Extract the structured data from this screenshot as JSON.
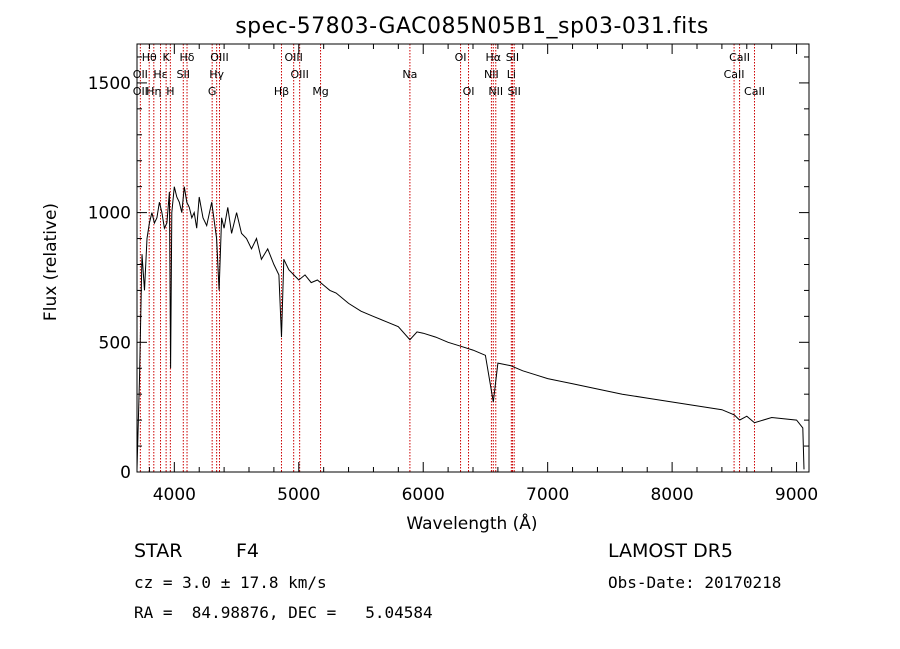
{
  "chart_data": {
    "type": "line",
    "title": "spec-57803-GAC085N05B1_sp03-031.fits",
    "xlabel": "Wavelength (Å)",
    "ylabel": "Flux (relative)",
    "xlim": [
      3700,
      9100
    ],
    "ylim": [
      0,
      1650
    ],
    "x_ticks": [
      4000,
      5000,
      6000,
      7000,
      8000,
      9000
    ],
    "y_ticks": [
      0,
      500,
      1000,
      1500
    ],
    "x_tick_labels": [
      "4000",
      "5000",
      "6000",
      "7000",
      "8000",
      "9000"
    ],
    "y_tick_labels": [
      "0",
      "500",
      "1000",
      "1500"
    ],
    "series": [
      {
        "x": [
          3700,
          3720,
          3740,
          3760,
          3780,
          3800,
          3820,
          3840,
          3860,
          3880,
          3900,
          3920,
          3940,
          3960,
          3970,
          3980,
          4000,
          4020,
          4040,
          4060,
          4080,
          4100,
          4120,
          4140,
          4160,
          4180,
          4200,
          4230,
          4260,
          4300,
          4340,
          4360,
          4380,
          4400,
          4430,
          4460,
          4500,
          4540,
          4580,
          4620,
          4660,
          4700,
          4750,
          4800,
          4840,
          4861,
          4880,
          4920,
          4960,
          5000,
          5050,
          5100,
          5150,
          5200,
          5250,
          5300,
          5400,
          5500,
          5600,
          5700,
          5800,
          5893,
          5950,
          6000,
          6100,
          6200,
          6300,
          6400,
          6500,
          6563,
          6600,
          6700,
          6800,
          6900,
          7000,
          7200,
          7400,
          7600,
          7800,
          8000,
          8200,
          8400,
          8500,
          8542,
          8600,
          8662,
          8800,
          9000,
          9050,
          9060
        ],
        "y": [
          10,
          360,
          840,
          700,
          900,
          960,
          1000,
          960,
          980,
          1040,
          1000,
          940,
          960,
          1080,
          400,
          1000,
          1100,
          1060,
          1040,
          1000,
          1100,
          1040,
          1020,
          980,
          1000,
          940,
          1060,
          980,
          950,
          1040,
          900,
          700,
          980,
          940,
          1020,
          920,
          1000,
          920,
          900,
          860,
          900,
          820,
          860,
          800,
          760,
          520,
          820,
          780,
          760,
          740,
          760,
          730,
          740,
          720,
          700,
          690,
          650,
          620,
          600,
          580,
          560,
          510,
          540,
          535,
          520,
          500,
          485,
          470,
          450,
          270,
          420,
          410,
          390,
          375,
          360,
          340,
          320,
          300,
          285,
          270,
          255,
          240,
          220,
          200,
          215,
          190,
          210,
          200,
          170,
          10
        ]
      }
    ],
    "spectral_lines": [
      {
        "label": "Hθ",
        "wavelength": 3798,
        "row": 1
      },
      {
        "label": "OII",
        "wavelength": 3727,
        "row": 2
      },
      {
        "label": "OII",
        "wavelength": 3727,
        "row": 3
      },
      {
        "label": "Hη",
        "wavelength": 3835,
        "row": 3
      },
      {
        "label": "K",
        "wavelength": 3934,
        "row": 1
      },
      {
        "label": "Hε",
        "wavelength": 3889,
        "row": 2
      },
      {
        "label": "H",
        "wavelength": 3968,
        "row": 3
      },
      {
        "label": "Hδ",
        "wavelength": 4102,
        "row": 1
      },
      {
        "label": "SII",
        "wavelength": 4072,
        "row": 2
      },
      {
        "label": "OIII",
        "wavelength": 4363,
        "row": 1
      },
      {
        "label": "Hγ",
        "wavelength": 4340,
        "row": 2
      },
      {
        "label": "G",
        "wavelength": 4304,
        "row": 3
      },
      {
        "label": "Hβ",
        "wavelength": 4861,
        "row": 3
      },
      {
        "label": "OIII",
        "wavelength": 4959,
        "row": 1
      },
      {
        "label": "OIII",
        "wavelength": 5007,
        "row": 2
      },
      {
        "label": "Mg",
        "wavelength": 5175,
        "row": 3
      },
      {
        "label": "Na",
        "wavelength": 5893,
        "row": 2
      },
      {
        "label": "OI",
        "wavelength": 6300,
        "row": 1
      },
      {
        "label": "OI",
        "wavelength": 6364,
        "row": 3
      },
      {
        "label": "Hα",
        "wavelength": 6563,
        "row": 1
      },
      {
        "label": "NII",
        "wavelength": 6548,
        "row": 2
      },
      {
        "label": "NII",
        "wavelength": 6583,
        "row": 3
      },
      {
        "label": "SII",
        "wavelength": 6717,
        "row": 1
      },
      {
        "label": "Li",
        "wavelength": 6708,
        "row": 2
      },
      {
        "label": "SII",
        "wavelength": 6731,
        "row": 3
      },
      {
        "label": "CaII",
        "wavelength": 8542,
        "row": 1
      },
      {
        "label": "CaII",
        "wavelength": 8498,
        "row": 2
      },
      {
        "label": "CaII",
        "wavelength": 8662,
        "row": 3
      }
    ],
    "grid": false,
    "line_color": "#000000",
    "marker_line_color": "#cc0000"
  },
  "info": {
    "class_label": "STAR",
    "subclass": "F4",
    "cz_text": "cz = 3.0 ± 17.8 km/s",
    "radec_text": "RA =  84.98876, DEC =   5.04584",
    "survey": "LAMOST DR5",
    "obs_date": "Obs-Date: 20170218"
  }
}
